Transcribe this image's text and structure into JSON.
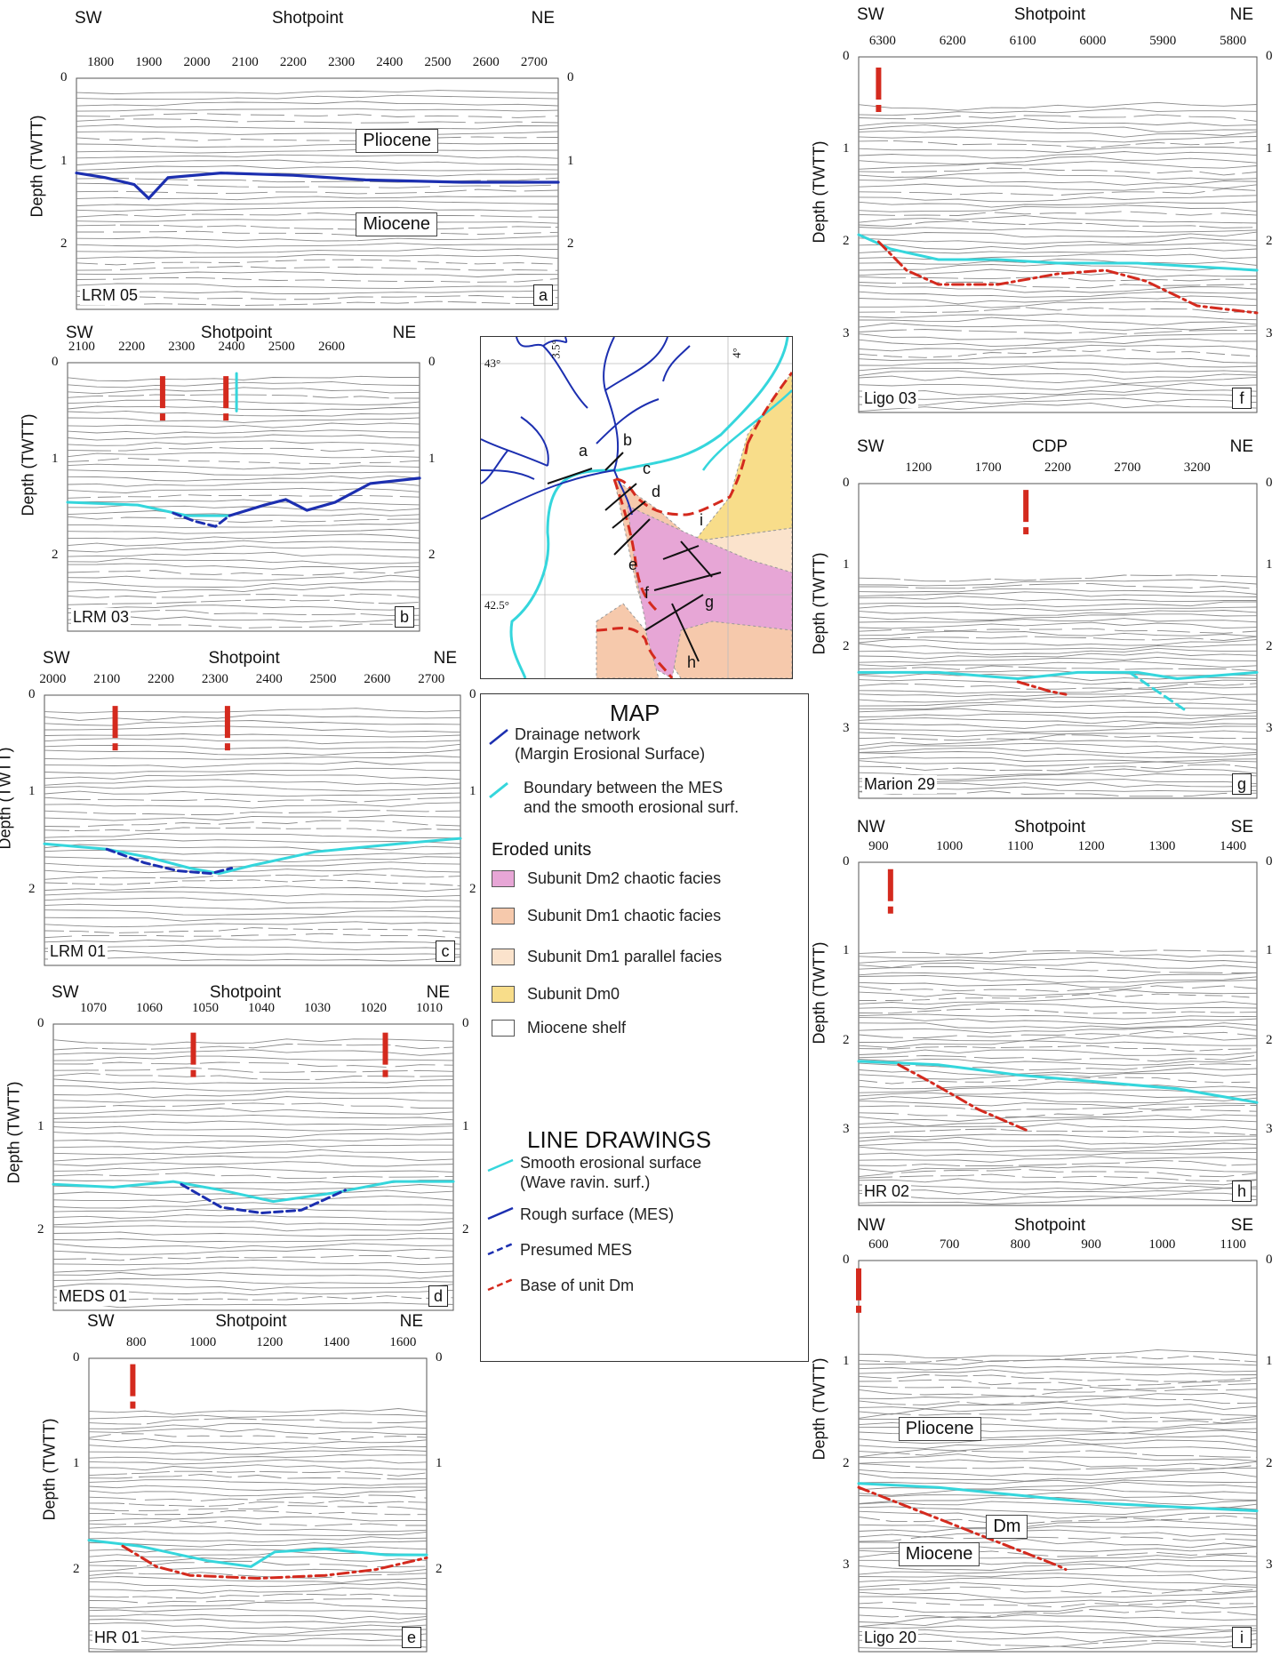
{
  "panels": [
    {
      "id": "a",
      "line": "LRM 05",
      "axis_title": "Shotpoint",
      "dir_left": "SW",
      "dir_right": "NE",
      "x_ticks": [
        "1800",
        "1900",
        "2000",
        "2100",
        "2200",
        "2300",
        "2400",
        "2500",
        "2600",
        "2700"
      ],
      "y_ticks": [
        "0",
        "1",
        "2"
      ],
      "y_label": "Depth (TWTT)",
      "units": [
        "Pliocene",
        "Miocene"
      ]
    },
    {
      "id": "b",
      "line": "LRM 03",
      "axis_title": "Shotpoint",
      "dir_left": "SW",
      "dir_right": "NE",
      "x_ticks": [
        "2100",
        "2200",
        "2300",
        "2400",
        "2500",
        "2600"
      ],
      "y_ticks": [
        "0",
        "1",
        "2"
      ],
      "y_label": "Depth (TWTT)",
      "units": []
    },
    {
      "id": "c",
      "line": "LRM 01",
      "axis_title": "Shotpoint",
      "dir_left": "SW",
      "dir_right": "NE",
      "x_ticks": [
        "2000",
        "2100",
        "2200",
        "2300",
        "2400",
        "2500",
        "2600",
        "2700"
      ],
      "y_ticks": [
        "0",
        "1",
        "2"
      ],
      "y_label": "Depth (TWTT)",
      "units": []
    },
    {
      "id": "d",
      "line": "MEDS 01",
      "axis_title": "Shotpoint",
      "dir_left": "SW",
      "dir_right": "NE",
      "x_ticks": [
        "1070",
        "1060",
        "1050",
        "1040",
        "1030",
        "1020",
        "1010"
      ],
      "y_ticks": [
        "0",
        "1",
        "2"
      ],
      "y_label": "Depth (TWTT)",
      "units": []
    },
    {
      "id": "e",
      "line": "HR 01",
      "axis_title": "Shotpoint",
      "dir_left": "SW",
      "dir_right": "NE",
      "x_ticks": [
        "800",
        "1000",
        "1200",
        "1400",
        "1600"
      ],
      "y_ticks": [
        "0",
        "1",
        "2"
      ],
      "y_label": "Depth (TWTT)",
      "units": []
    },
    {
      "id": "f",
      "line": "Ligo 03",
      "axis_title": "Shotpoint",
      "dir_left": "SW",
      "dir_right": "NE",
      "x_ticks": [
        "6300",
        "6200",
        "6100",
        "6000",
        "5900",
        "5800"
      ],
      "y_ticks": [
        "0",
        "1",
        "2",
        "3"
      ],
      "y_label": "Depth (TWTT)",
      "units": []
    },
    {
      "id": "g",
      "line": "Marion 29",
      "axis_title": "CDP",
      "dir_left": "SW",
      "dir_right": "NE",
      "x_ticks": [
        "1200",
        "1700",
        "2200",
        "2700",
        "3200"
      ],
      "y_ticks": [
        "0",
        "1",
        "2",
        "3"
      ],
      "y_label": "Depth (TWTT)",
      "units": []
    },
    {
      "id": "h",
      "line": "HR 02",
      "axis_title": "Shotpoint",
      "dir_left": "NW",
      "dir_right": "SE",
      "x_ticks": [
        "900",
        "1000",
        "1100",
        "1200",
        "1300",
        "1400"
      ],
      "y_ticks": [
        "0",
        "1",
        "2",
        "3"
      ],
      "y_label": "Depth (TWTT)",
      "units": []
    },
    {
      "id": "i",
      "line": "Ligo 20",
      "axis_title": "Shotpoint",
      "dir_left": "NW",
      "dir_right": "SE",
      "x_ticks": [
        "600",
        "700",
        "800",
        "900",
        "1000",
        "1100"
      ],
      "y_ticks": [
        "0",
        "1",
        "2",
        "3"
      ],
      "y_label": "Depth (TWTT)",
      "units": [
        "Pliocene",
        "Dm",
        "Miocene"
      ]
    }
  ],
  "map": {
    "coords": [
      "43°",
      "3.5°",
      "4°",
      "42.5°"
    ],
    "line_labels": [
      "a",
      "b",
      "c",
      "d",
      "e",
      "f",
      "g",
      "h",
      "i"
    ]
  },
  "legend": {
    "title": "MAP",
    "drainage": "Drainage network",
    "drainage_sub": "(Margin Erosional Surface)",
    "boundary": "Boundary between the MES",
    "boundary_sub": "and the smooth erosional surf.",
    "eroded_heading": "Eroded units",
    "units": [
      {
        "label": "Subunit Dm2 chaotic facies",
        "color": "#e7a6d6"
      },
      {
        "label": "Subunit Dm1 chaotic facies",
        "color": "#f6c9ac"
      },
      {
        "label": "Subunit Dm1 parallel facies",
        "color": "#fbe3cc"
      },
      {
        "label": "Subunit Dm0",
        "color": "#f8dd8a"
      },
      {
        "label": "Miocene shelf",
        "color": "#ffffff"
      }
    ],
    "drawings_title": "LINE DRAWINGS",
    "smooth": "Smooth erosional surface",
    "smooth_sub": "(Wave ravin. surf.)",
    "rough": "Rough surface (MES)",
    "presumed": "Presumed MES",
    "base": "Base of unit Dm"
  },
  "colors": {
    "mes": "#1c2fb0",
    "smooth": "#35d6dc",
    "base": "#d42a1e",
    "reflector": "#8a8a8a"
  }
}
